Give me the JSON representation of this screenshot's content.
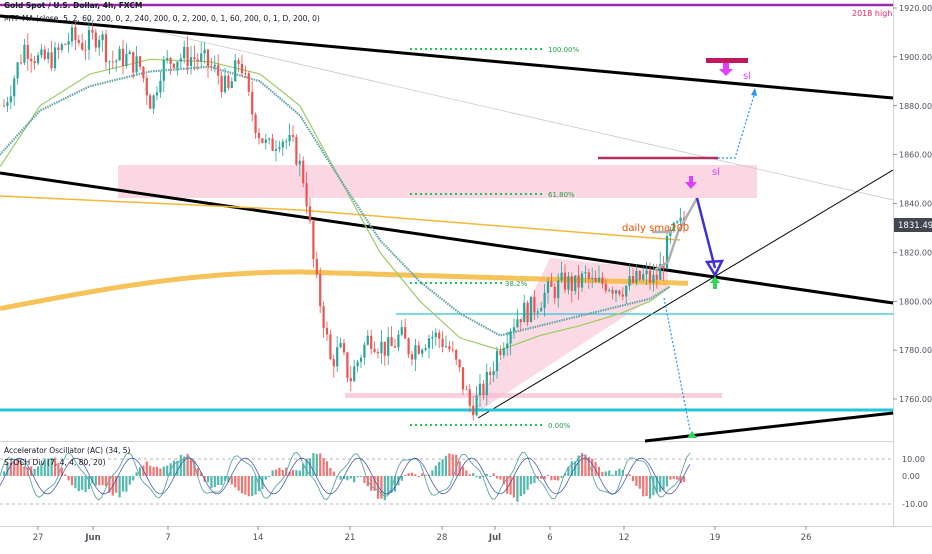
{
  "header": {
    "symbol_line": "Gold Spot / U.S. Dollar, 4h, FXCM",
    "indicator_line": "MTF-MA (close, 5, 2, 60, 200, 0, 2, 240, 200, 0, 2, 200, 0, 1, 60, 200, 0, 1, D, 200, 0)"
  },
  "oscillator_pane": {
    "indicator1": "Accelerator Oscillator (AC) (34, 5)",
    "indicator2": "STOCH Div (7, 4, 4, 80, 20)",
    "ticks": [
      "10.00",
      "0.00",
      "-10.00"
    ]
  },
  "annotations": {
    "high_2018": "2018 high",
    "fib_100": "100.00%",
    "fib_618": "61.80%",
    "fib_382": "38.2%",
    "fib_0": "0.00%",
    "sl_upper": "sl",
    "sl_lower": "sl",
    "sma_label": "daily sma200"
  },
  "colors": {
    "bull": "#26a69a",
    "bear": "#ef5350",
    "trend": "#000000",
    "sma200": "#f5b83d",
    "ma_teal": "#5fa5a6",
    "ma_green": "#9ccc65",
    "zone": "#f8bbd0",
    "cyan": "#26c6da",
    "magenta": "#e040fb",
    "arrow_blue": "#3f2fd6",
    "arrow_green": "#2fd65a",
    "price_tag": "#434651"
  },
  "chart_data": {
    "type": "candlestick",
    "price_axis": {
      "ticks": [
        "1920.00",
        "1900.00",
        "1880.00",
        "1860.00",
        "1840.00",
        "1820.00",
        "1800.00",
        "1780.00",
        "1760.00"
      ],
      "current_price": "1831.49"
    },
    "date_axis": {
      "ticks": [
        "27",
        "Jun",
        "7",
        "14",
        "21",
        "28",
        "Jul",
        "6",
        "12",
        "19",
        "26"
      ]
    },
    "key_levels": {
      "high_2018": 1920,
      "resistance_zone": [
        1843,
        1855
      ],
      "support_cyan": 1755,
      "box_top": 1795,
      "sl_upper": 1898,
      "sl_lower": 1858
    }
  }
}
